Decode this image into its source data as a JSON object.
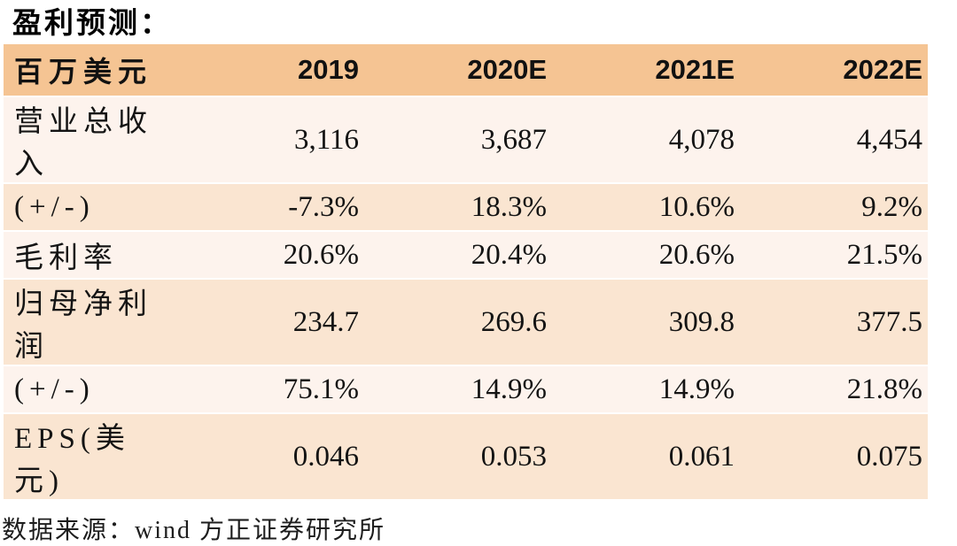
{
  "title": "盈利预测：",
  "source": "数据来源：wind 方正证券研究所",
  "colors": {
    "header_bg": "#F5C493",
    "row_light_bg": "#FDF3ED",
    "row_dark_bg": "#FAE5D1",
    "text": "#141414"
  },
  "chart_data": {
    "type": "table",
    "title": "盈利预测：",
    "unit": "百万美元",
    "columns": [
      "2019",
      "2020E",
      "2021E",
      "2022E"
    ],
    "rows": [
      {
        "label": "营业总收入",
        "values": [
          "3,116",
          "3,687",
          "4,078",
          "4,454"
        ]
      },
      {
        "label": "(+/-)",
        "values": [
          "-7.3%",
          "18.3%",
          "10.6%",
          "9.2%"
        ]
      },
      {
        "label": "毛利率",
        "values": [
          "20.6%",
          "20.4%",
          "20.6%",
          "21.5%"
        ]
      },
      {
        "label": "归母净利润",
        "values": [
          "234.7",
          "269.6",
          "309.8",
          "377.5"
        ]
      },
      {
        "label": "(+/-)",
        "values": [
          "75.1%",
          "14.9%",
          "14.9%",
          "21.8%"
        ]
      },
      {
        "label": "EPS(美元)",
        "values": [
          "0.046",
          "0.053",
          "0.061",
          "0.075"
        ]
      }
    ],
    "source": "数据来源：wind 方正证券研究所",
    "layout": {
      "header_style": "peach band",
      "row_striping": "light/dark alternating",
      "value_alignment": "right"
    }
  }
}
